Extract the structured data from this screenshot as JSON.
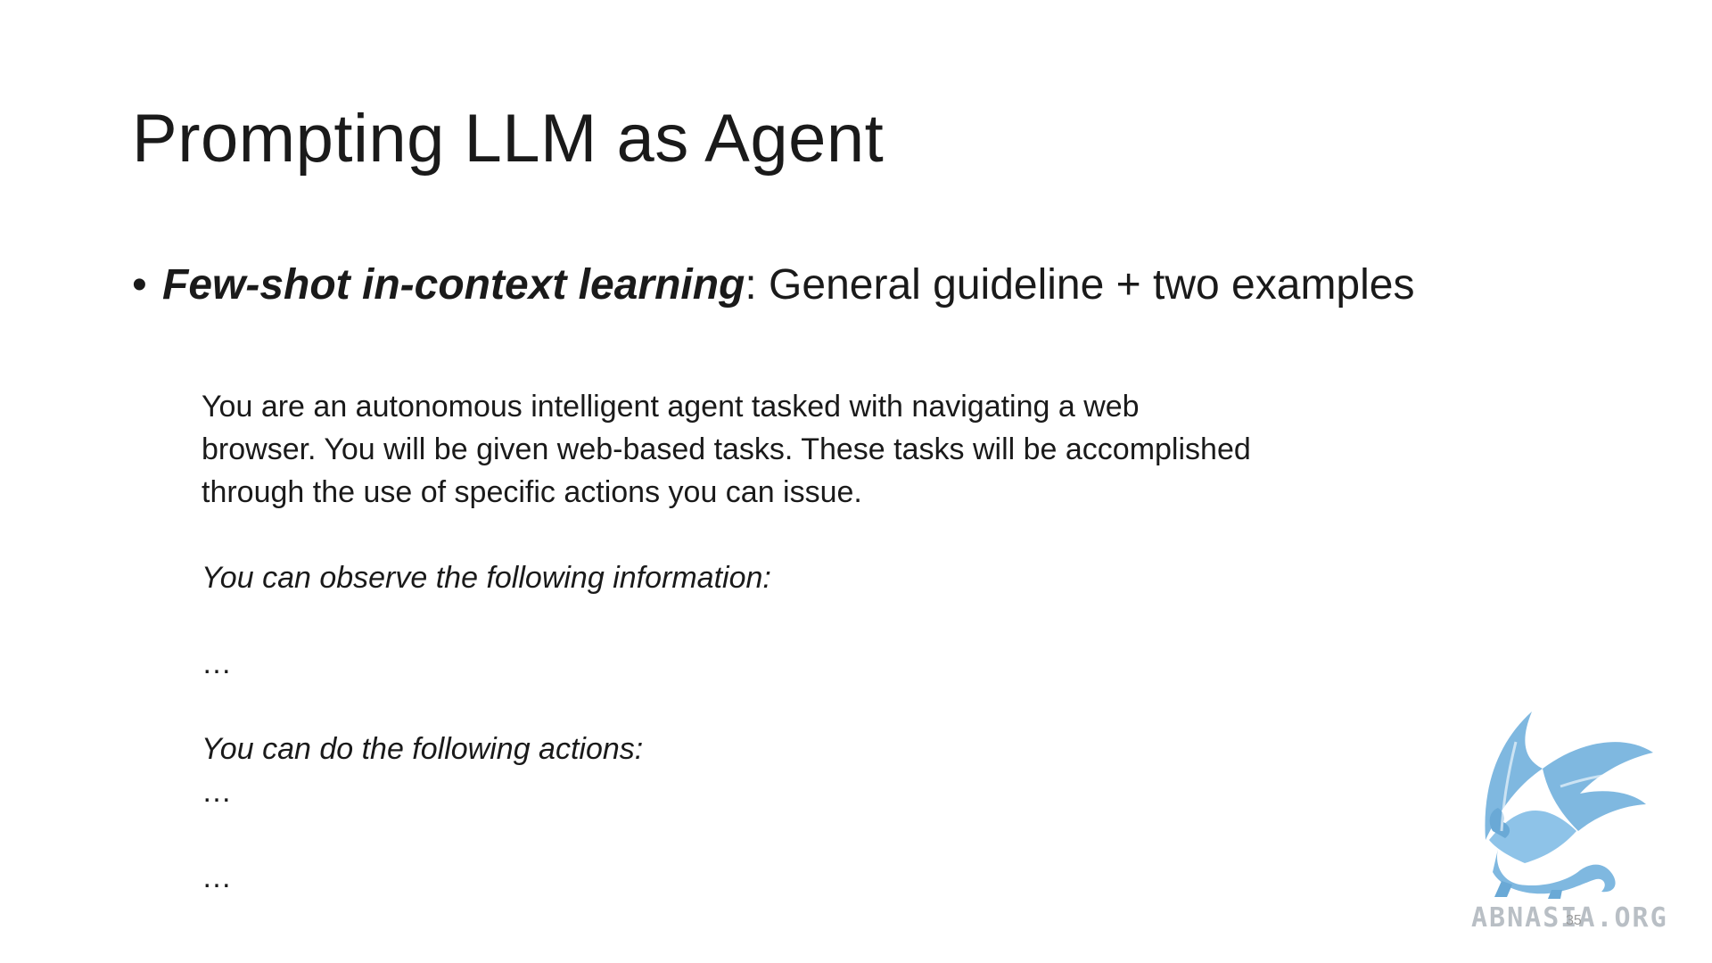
{
  "slide": {
    "title": "Prompting LLM as Agent",
    "bullet": {
      "symbol": "•",
      "emphasis": "Few-shot in-context learning",
      "rest": ": General guideline + two examples"
    },
    "prompt": {
      "intro_lines": [
        "You are an autonomous intelligent agent tasked with navigating a web",
        "browser. You will be given web-based tasks. These tasks will be accomplished",
        "through the use of specific actions you can issue."
      ],
      "observe_heading": "You can observe the following information:",
      "ellipsis_1": "…",
      "actions_heading": "You can do the following actions:",
      "ellipsis_2": "…",
      "ellipsis_3": "…"
    },
    "page_number": "35"
  },
  "watermark": {
    "text": "ABNASIA.ORG",
    "icon": "griffin-logo-icon",
    "color": "#7fb8e0"
  }
}
